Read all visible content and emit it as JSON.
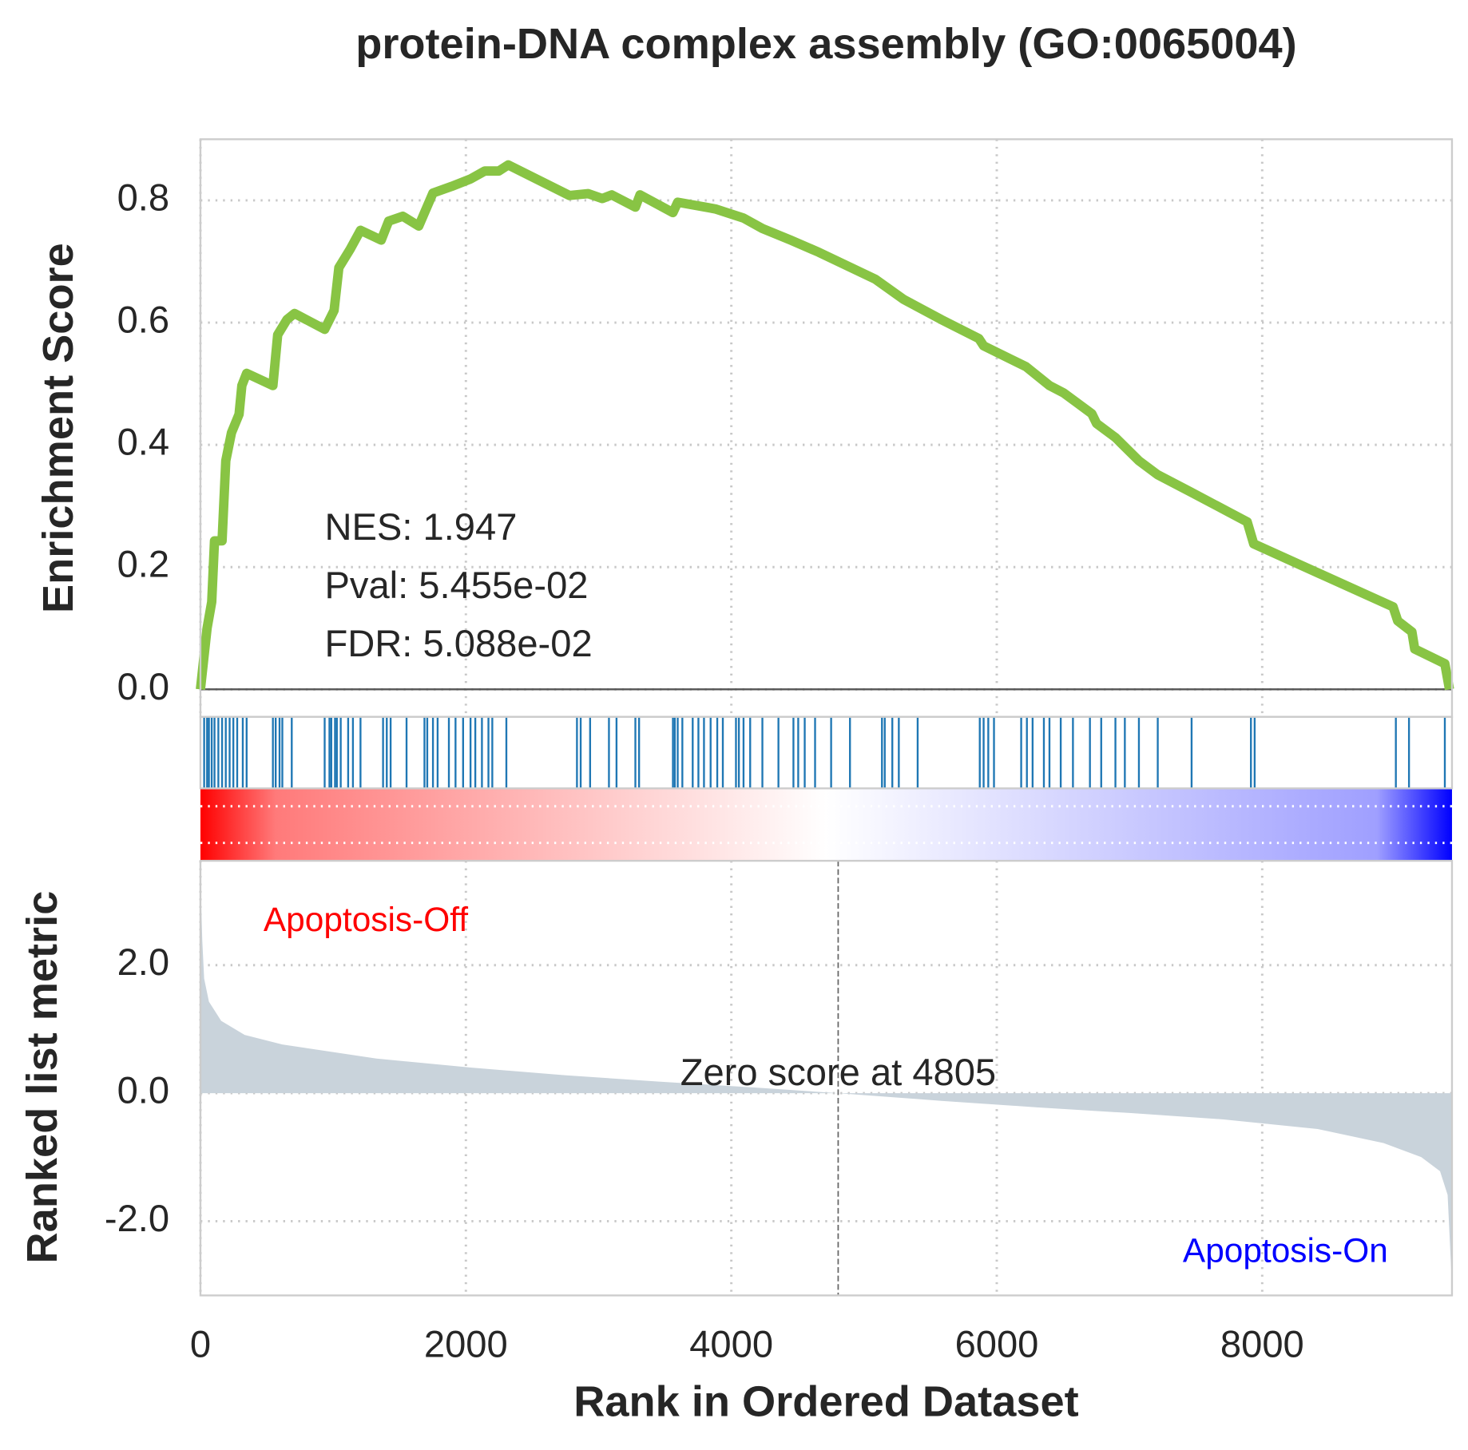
{
  "chart_data": [
    {
      "type": "line",
      "title": "protein-DNA complex assembly (GO:0065004)",
      "ylabel": "Enrichment Score",
      "x": [
        0,
        50,
        85,
        106,
        163,
        191,
        234,
        291,
        312,
        348,
        546,
        582,
        652,
        709,
        936,
        1007,
        1043,
        1128,
        1206,
        1362,
        1418,
        1525,
        1645,
        1752,
        1894,
        2035,
        2142,
        2248,
        2319,
        2780,
        2922,
        3028,
        3099,
        3277,
        3312,
        3560,
        3596,
        3879,
        4092,
        4234,
        4447,
        4660,
        5085,
        5298,
        5582,
        5865,
        5901,
        6220,
        6397,
        6504,
        6716,
        6752,
        6894,
        7071,
        7213,
        7461,
        7887,
        7936,
        8986,
        9021,
        9128,
        9149,
        9376,
        9411
      ],
      "values": [
        0,
        0.1,
        0.143,
        0.243,
        0.243,
        0.374,
        0.42,
        0.45,
        0.497,
        0.517,
        0.497,
        0.58,
        0.605,
        0.615,
        0.589,
        0.62,
        0.69,
        0.72,
        0.751,
        0.735,
        0.766,
        0.774,
        0.758,
        0.812,
        0.823,
        0.835,
        0.848,
        0.848,
        0.858,
        0.808,
        0.811,
        0.803,
        0.809,
        0.789,
        0.809,
        0.78,
        0.797,
        0.786,
        0.771,
        0.754,
        0.735,
        0.715,
        0.671,
        0.638,
        0.605,
        0.574,
        0.562,
        0.528,
        0.497,
        0.485,
        0.451,
        0.435,
        0.412,
        0.374,
        0.351,
        0.323,
        0.274,
        0.238,
        0.135,
        0.112,
        0.094,
        0.066,
        0.042,
        0
      ],
      "color": "#88c444",
      "xlim": [
        0,
        9430
      ],
      "ylim": [
        -0.045,
        0.9
      ],
      "yticks": [
        {
          "value": 0,
          "label": "0.0"
        },
        0.2,
        0.4,
        0.6,
        0.8
      ],
      "annotations": [
        "NES: 1.947",
        "Pval: 5.455e-02",
        "FDR: 5.088e-02"
      ],
      "grid": true
    },
    {
      "type": "rug",
      "color": "#1f77b4",
      "xlim": [
        0,
        9430
      ],
      "x": [
        28,
        50,
        64,
        85,
        106,
        135,
        163,
        191,
        220,
        248,
        277,
        319,
        348,
        546,
        567,
        596,
        617,
        688,
        936,
        972,
        986,
        1014,
        1028,
        1057,
        1113,
        1149,
        1206,
        1376,
        1404,
        1433,
        1553,
        1688,
        1709,
        1752,
        1787,
        1872,
        1922,
        1979,
        2035,
        2071,
        2121,
        2170,
        2199,
        2305,
        2837,
        2865,
        2936,
        3078,
        3135,
        3277,
        3305,
        3560,
        3574,
        3596,
        3631,
        3709,
        3752,
        3794,
        3844,
        3894,
        3936,
        4035,
        4057,
        4092,
        4142,
        4234,
        4355,
        4468,
        4504,
        4553,
        4631,
        4752,
        4894,
        5135,
        5156,
        5213,
        5262,
        5404,
        5872,
        5901,
        5936,
        5979,
        6184,
        6227,
        6270,
        6355,
        6397,
        6482,
        6574,
        6702,
        6787,
        6894,
        6965,
        7071,
        7213,
        7468,
        7915,
        7943,
        9007,
        9106,
        9376
      ]
    },
    {
      "type": "area",
      "ylabel": "Ranked list metric",
      "xlabel": "Rank in Ordered Dataset",
      "x": [
        0,
        14,
        28,
        64,
        156,
        333,
        617,
        1326,
        2035,
        2745,
        3454,
        4163,
        4805,
        5582,
        6291,
        7000,
        7709,
        8418,
        8915,
        9199,
        9340,
        9397,
        9426
      ],
      "values": [
        3.34,
        2.38,
        1.79,
        1.43,
        1.13,
        0.91,
        0.76,
        0.54,
        0.4,
        0.28,
        0.18,
        0.09,
        0,
        -0.12,
        -0.22,
        -0.31,
        -0.41,
        -0.56,
        -0.78,
        -1.0,
        -1.22,
        -1.59,
        -2.84
      ],
      "color": "#c9d3db",
      "xlim": [
        0,
        9430
      ],
      "ylim": [
        -3.16,
        3.63
      ],
      "xticks": [
        0,
        2000,
        4000,
        6000,
        8000
      ],
      "yticks": [
        {
          "value": -2,
          "label": "-2.0"
        },
        {
          "value": 0,
          "label": "0.0"
        },
        {
          "value": 2,
          "label": "2.0"
        }
      ],
      "zero_line": 4805,
      "zero_label": "Zero score at 4805",
      "pos_label": "Apoptosis-Off",
      "pos_color": "#ff0000",
      "neg_label": "Apoptosis-On",
      "neg_color": "#0000ff",
      "grid": true
    }
  ]
}
